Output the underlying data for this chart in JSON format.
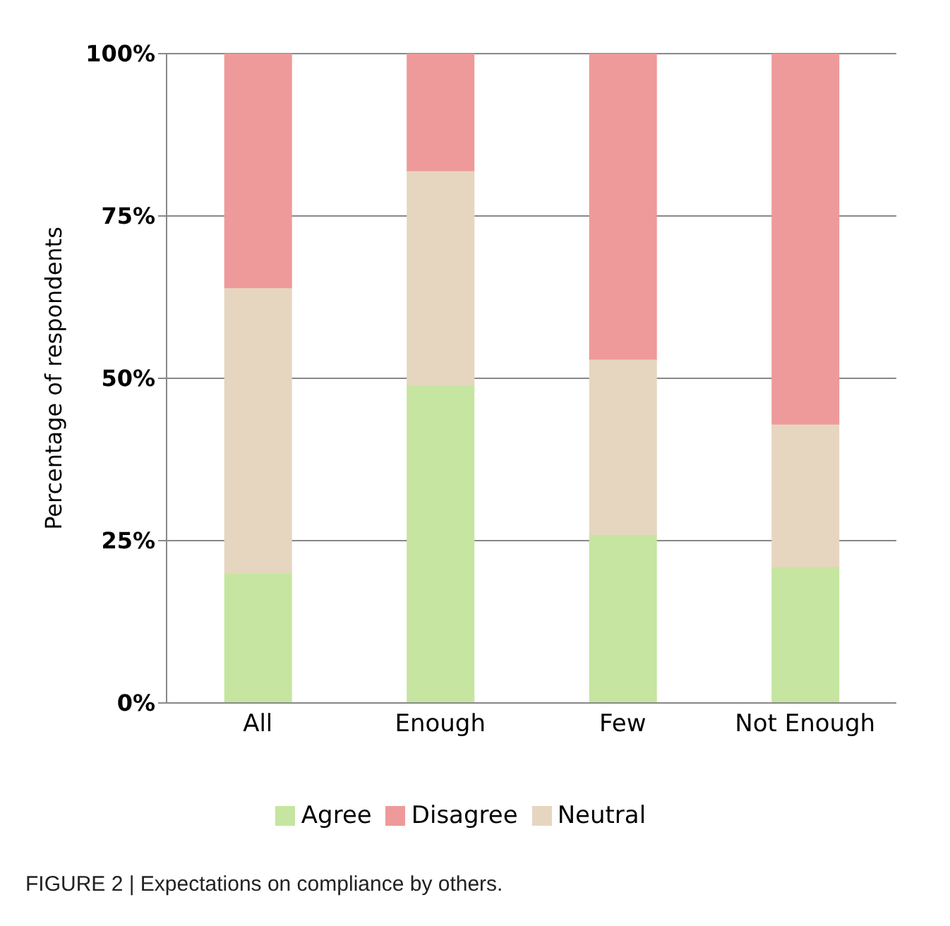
{
  "chart_data": {
    "type": "bar",
    "stacked": true,
    "ylabel": "Percentage of respondents",
    "categories": [
      "All",
      "Enough",
      "Few",
      "Not Enough"
    ],
    "series": [
      {
        "name": "Agree",
        "color": "#c5e5a0",
        "values": [
          20,
          49,
          26,
          21
        ]
      },
      {
        "name": "Neutral",
        "color": "#e6d6c0",
        "values": [
          44,
          33,
          27,
          22
        ]
      },
      {
        "name": "Disagree",
        "color": "#ee9a9a",
        "values": [
          36,
          18,
          47,
          57
        ]
      }
    ],
    "ylim": [
      0,
      100
    ],
    "yticks": [
      {
        "value": 0,
        "label": "0%"
      },
      {
        "value": 25,
        "label": "25%"
      },
      {
        "value": 50,
        "label": "50%"
      },
      {
        "value": 75,
        "label": "75%"
      },
      {
        "value": 100,
        "label": "100%"
      }
    ],
    "grid": "y",
    "legend": "bottom",
    "annotations": [
      "FIGURE 2 | Expectations on compliance by others."
    ]
  }
}
